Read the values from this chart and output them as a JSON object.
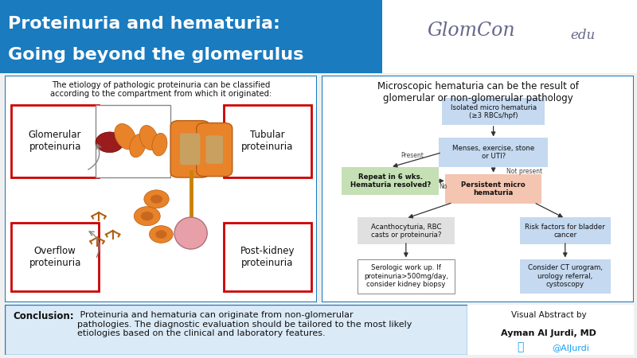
{
  "title_line1": "Proteinuria and hematuria:",
  "title_line2": "Going beyond the glomerulus",
  "title_bg": "#1a7bbf",
  "title_text_color": "#ffffff",
  "left_panel_title": "The etiology of pathologic proteinuria can be classified\naccording to the compartment from which it originated:",
  "red_box_color": "#cc0000",
  "right_panel_title": "Microscopic hematuria can be the result of\nglomerular or non-glomerular pathology",
  "conclusion_bold": "Conclusion:",
  "conclusion_text": " Proteinuria and hematuria can originate from non-glomerular\npathologies. The diagnostic evaluation should be tailored to the most likely\netiologies based on the clinical and laboratory features.",
  "author_line1": "Visual Abstract by",
  "author_line2": "Ayman Al Jurdi, MD",
  "author_twitter": "@AlJurdi",
  "node_blue": "#c5d9f0",
  "node_green": "#c5e0b4",
  "node_peach": "#f4c5b0",
  "node_gray": "#e0e0e0",
  "panel_border": "#1a7bbf",
  "bottom_bg": "#dbeaf7"
}
